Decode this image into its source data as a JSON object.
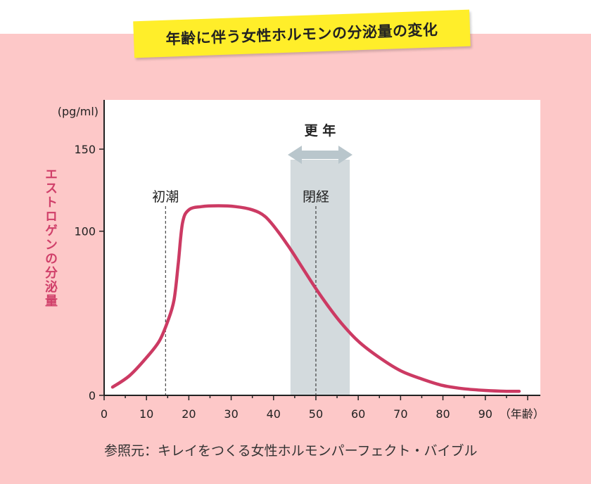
{
  "title": "年齢に伴う女性ホルモンの分泌量の変化",
  "source": "参照元：キレイをつくる女性ホルモンパーフェクト・バイブル",
  "colors": {
    "background": "#fdc8c8",
    "plot_background": "#ffffff",
    "banner": "#ffee2a",
    "curve": "#cc3a63",
    "ylabel": "#d0406a",
    "band": "#d3dadd",
    "arrow": "#b9c6cc"
  },
  "chart_data": {
    "type": "line",
    "title": "年齢に伴う女性ホルモンの分泌量の変化",
    "ylabel": "エストロゲンの分泌量",
    "yunit": "(pg/ml)",
    "xunit": "（年齢）",
    "xlim": [
      0,
      103
    ],
    "ylim": [
      0,
      180
    ],
    "xticks": [
      0,
      10,
      20,
      30,
      40,
      50,
      60,
      70,
      80,
      90
    ],
    "yticks": [
      0,
      100,
      150
    ],
    "grid": false,
    "series": [
      {
        "x": [
          2,
          6,
          10,
          13,
          15,
          16.5,
          17.5,
          18.5,
          20,
          23,
          27,
          31,
          35,
          38,
          41,
          44,
          47,
          50,
          53,
          56,
          60,
          65,
          70,
          75,
          80,
          85,
          90,
          95,
          98
        ],
        "y": [
          5,
          12,
          23,
          33,
          45,
          58,
          80,
          105,
          113,
          115,
          115.5,
          115,
          113,
          109,
          100,
          89,
          77,
          65,
          54,
          44,
          33,
          23,
          15,
          10,
          6,
          4,
          3,
          2.5,
          2.5
        ]
      }
    ],
    "annotations": [
      {
        "label": "初潮",
        "x": 14.5
      },
      {
        "label": "閉経",
        "x": 50
      }
    ],
    "band": {
      "label": "更 年",
      "x": [
        44,
        58
      ]
    }
  }
}
